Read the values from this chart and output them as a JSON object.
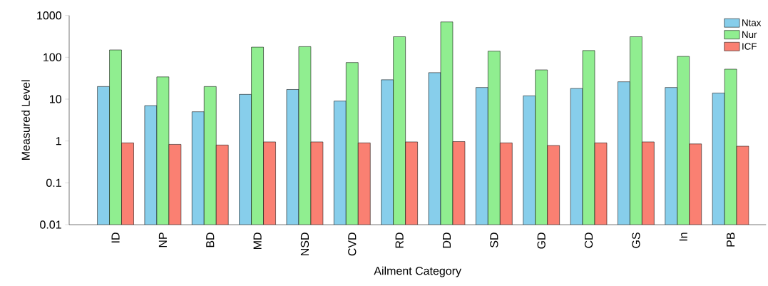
{
  "chart_data": {
    "type": "bar",
    "xlabel": "Ailment Category",
    "ylabel": "Measured Level",
    "categories": [
      "ID",
      "NP",
      "BD",
      "MD",
      "NSD",
      "CVD",
      "RD",
      "DD",
      "SD",
      "GD",
      "CD",
      "GS",
      "In",
      "PB"
    ],
    "series": [
      {
        "name": "Ntax",
        "color": "#87ceeb",
        "values": [
          20,
          7,
          5,
          13,
          17,
          9,
          29,
          43,
          19,
          12,
          18,
          26,
          19,
          14
        ]
      },
      {
        "name": "Nur",
        "color": "#90ee90",
        "values": [
          150,
          34,
          20,
          175,
          180,
          75,
          310,
          700,
          140,
          50,
          145,
          310,
          105,
          52
        ]
      },
      {
        "name": "ICF",
        "color": "#fa8072",
        "values": [
          0.9,
          0.83,
          0.8,
          0.95,
          0.95,
          0.9,
          0.95,
          0.97,
          0.9,
          0.78,
          0.9,
          0.95,
          0.85,
          0.75
        ]
      }
    ],
    "log": "y",
    "ylim": [
      0.01,
      1000
    ],
    "yticks": [
      0.01,
      0.1,
      1,
      10,
      100,
      1000
    ],
    "legend": "top right",
    "grid": false
  }
}
